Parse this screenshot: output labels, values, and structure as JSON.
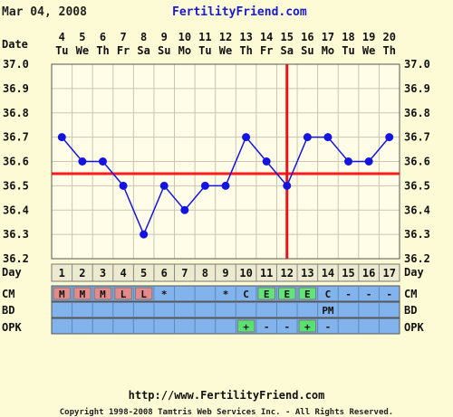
{
  "header": {
    "date": "Mar 04, 2008",
    "site": "FertilityFriend.com"
  },
  "row_labels": {
    "date": "Date",
    "day": "Day",
    "cm": "CM",
    "bd": "BD",
    "opk": "OPK"
  },
  "colors": {
    "background": "#fdfbd5",
    "plot_background": "#fffde8",
    "grid": "#c7c7b0",
    "line": "#1414e0",
    "coverline": "#ff1b1b",
    "ovulation_line": "#e3141b",
    "day_row": "#ecebd0",
    "row_blue": "#83b3ec",
    "cm_red": "#e38a8a",
    "cm_green": "#63e37b",
    "opk_green": "#58e070"
  },
  "footer": {
    "url": "http://www.FertilityFriend.com",
    "copyright": "Copyright 1998-2008 Tamtris Web Services Inc. - All Rights Reserved."
  },
  "chart_data": {
    "type": "line",
    "dates": [
      "4",
      "5",
      "6",
      "7",
      "8",
      "9",
      "10",
      "11",
      "12",
      "13",
      "14",
      "15",
      "16",
      "17",
      "18",
      "19",
      "20"
    ],
    "weekdays": [
      "Tu",
      "We",
      "Th",
      "Fr",
      "Sa",
      "Su",
      "Mo",
      "Tu",
      "We",
      "Th",
      "Fr",
      "Sa",
      "Su",
      "Mo",
      "Tu",
      "We",
      "Th"
    ],
    "cycle_days": [
      "1",
      "2",
      "3",
      "4",
      "5",
      "6",
      "7",
      "8",
      "9",
      "10",
      "11",
      "12",
      "13",
      "14",
      "15",
      "16",
      "17"
    ],
    "series": [
      {
        "values": [
          36.7,
          36.6,
          36.6,
          36.5,
          36.3,
          36.5,
          36.4,
          36.5,
          36.5,
          36.7,
          36.6,
          36.5,
          36.7,
          36.7,
          36.6,
          36.6,
          36.7
        ]
      }
    ],
    "ylim": [
      36.2,
      37.0
    ],
    "yticks": [
      "37.0",
      "36.9",
      "36.8",
      "36.7",
      "36.6",
      "36.5",
      "36.4",
      "36.3",
      "36.2"
    ],
    "coverline": 36.55,
    "ovulation_day_index": 11,
    "grid": true,
    "cm": [
      "M",
      "M",
      "M",
      "L",
      "L",
      "*",
      "",
      "",
      "*",
      "C",
      "E",
      "E",
      "E",
      "C",
      "-",
      "-",
      "-"
    ],
    "cm_colors": [
      "red",
      "red",
      "red",
      "red",
      "red",
      "blue",
      "blue",
      "blue",
      "blue",
      "blue",
      "green",
      "green",
      "green",
      "blue",
      "blue",
      "blue",
      "blue"
    ],
    "bd": [
      "",
      "",
      "",
      "",
      "",
      "",
      "",
      "",
      "",
      "",
      "",
      "",
      "",
      "PM",
      "",
      "",
      ""
    ],
    "opk": [
      "",
      "",
      "",
      "",
      "",
      "",
      "",
      "",
      "",
      "+",
      "-",
      "-",
      "+",
      "-",
      "",
      "",
      ""
    ],
    "opk_colors": [
      "blue",
      "blue",
      "blue",
      "blue",
      "blue",
      "blue",
      "blue",
      "blue",
      "blue",
      "green",
      "blue",
      "blue",
      "green",
      "blue",
      "blue",
      "blue",
      "blue"
    ]
  }
}
